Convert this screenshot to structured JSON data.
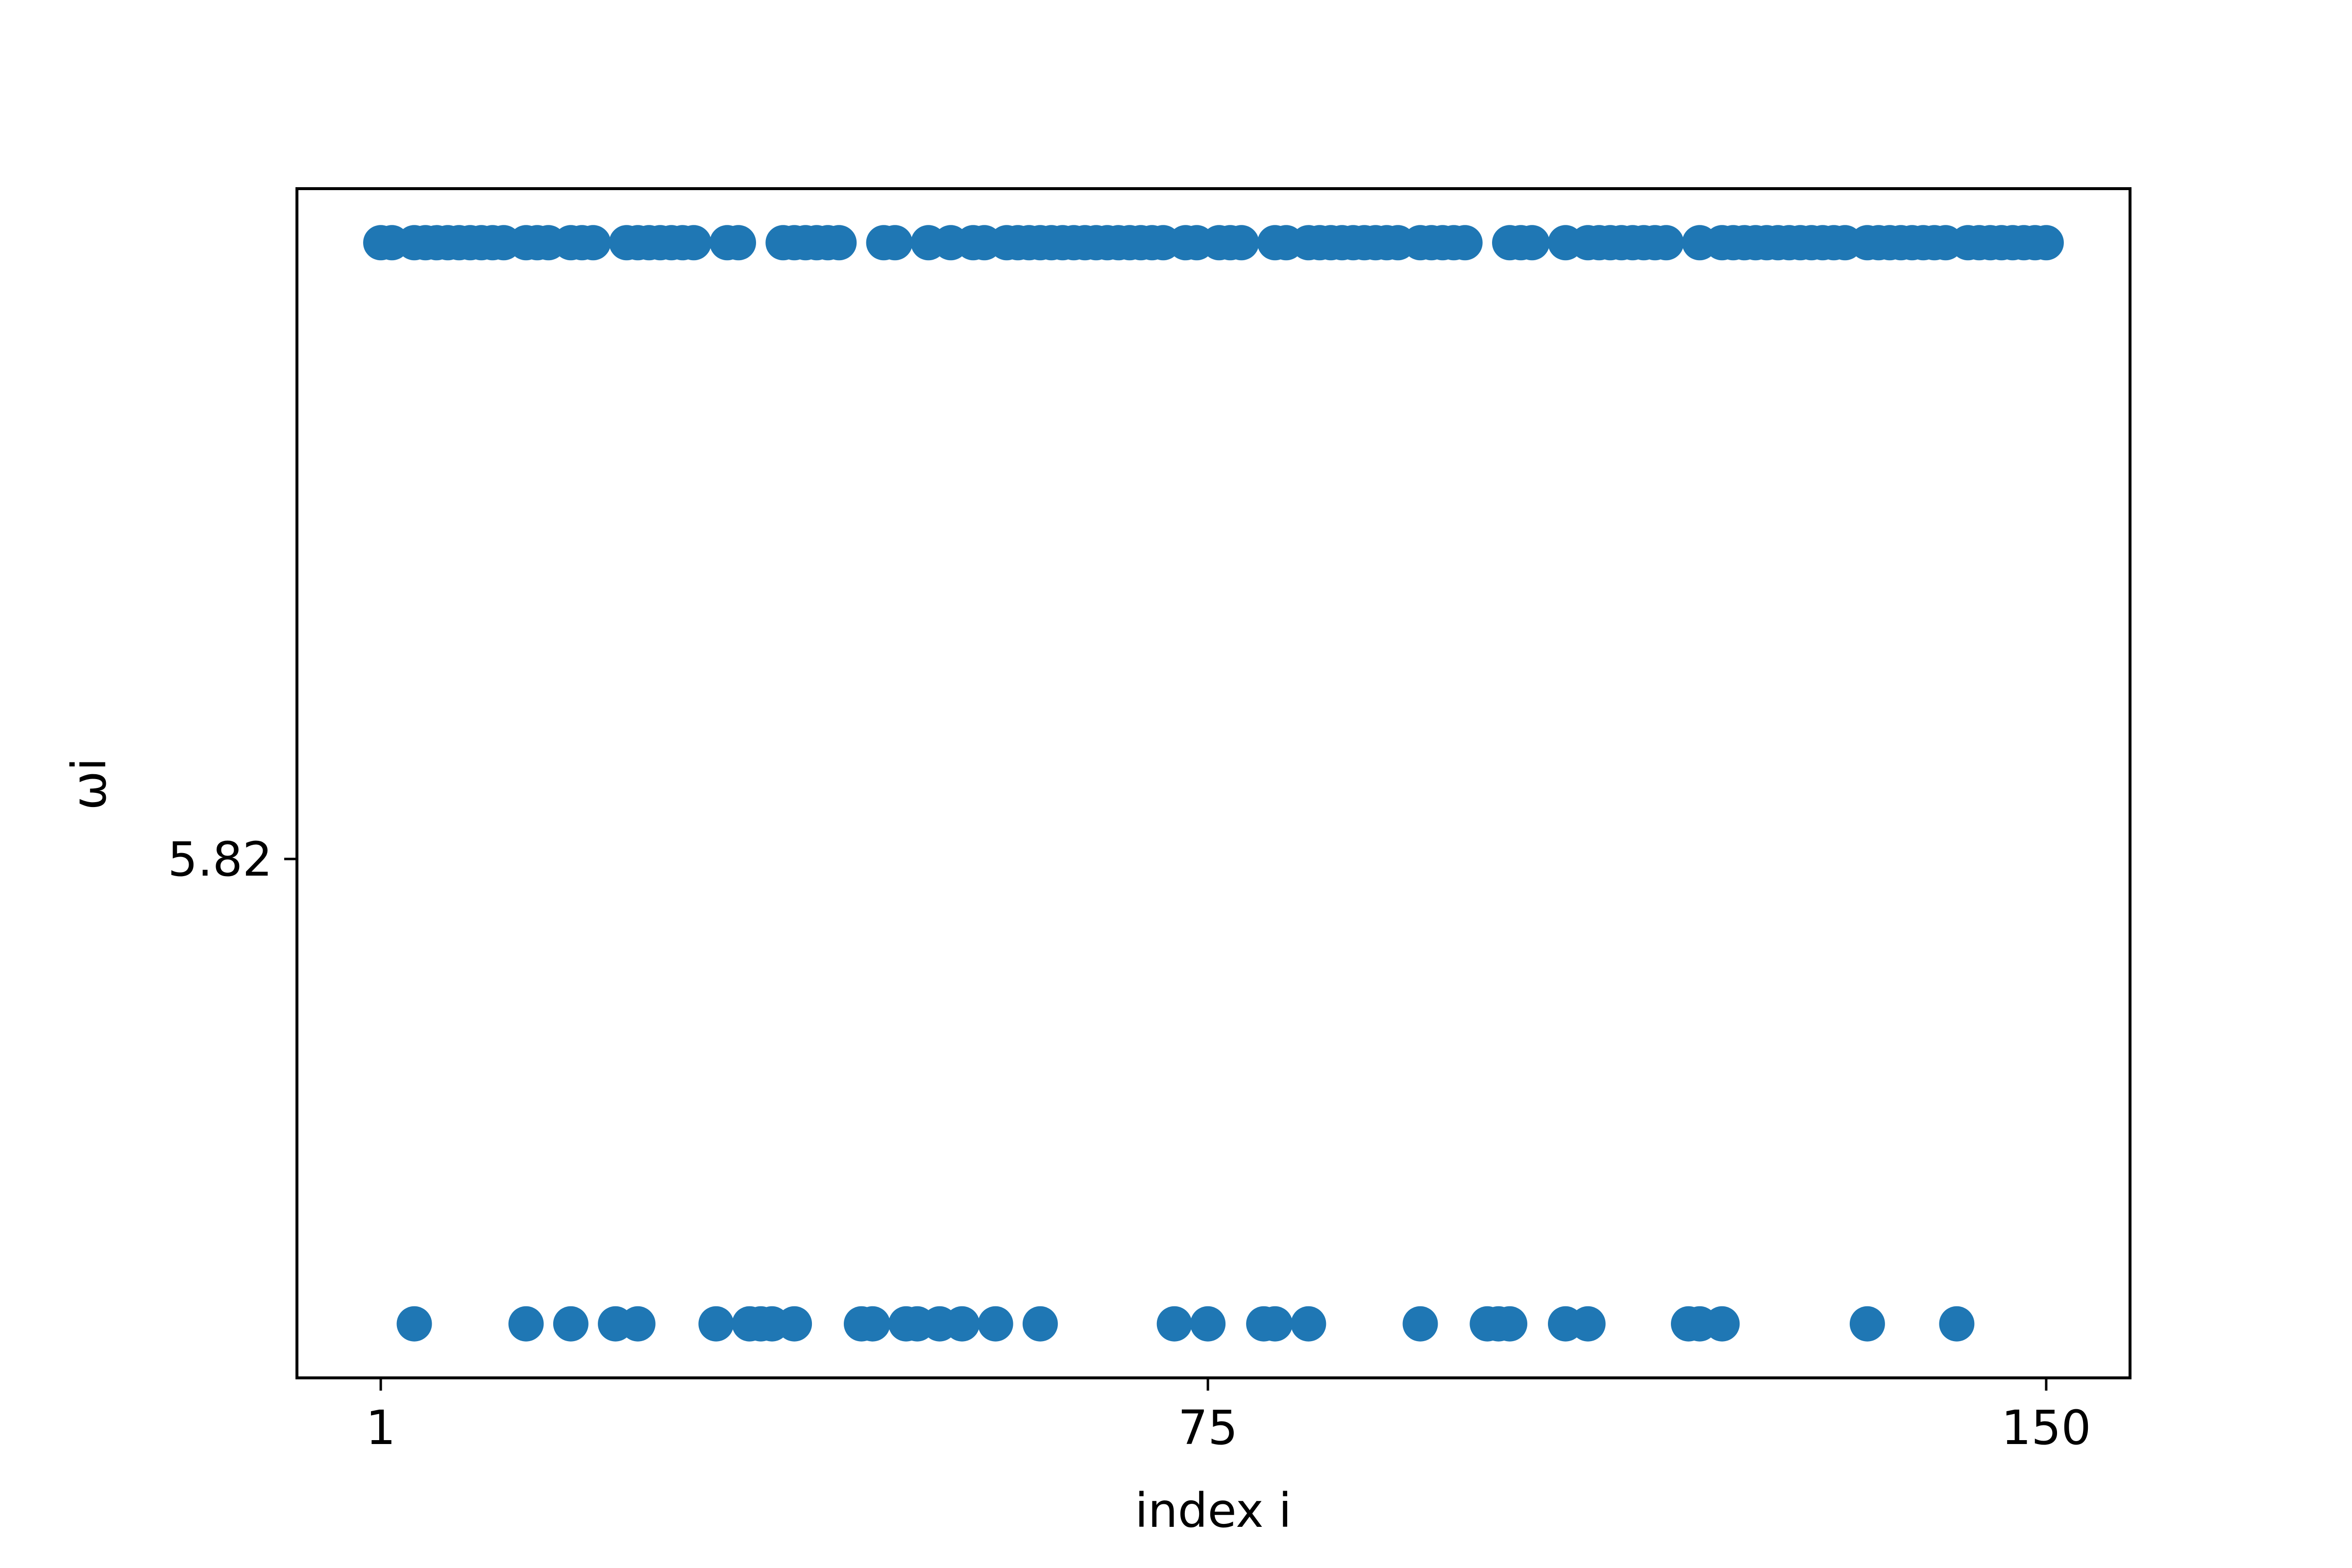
{
  "chart_data": {
    "type": "scatter",
    "xlabel": "index i",
    "ylabel": "ωi",
    "xticks": [
      1,
      75,
      150
    ],
    "yticks": [
      "5.82"
    ],
    "xlim": [
      -6.5,
      157.5
    ],
    "ylim": [
      5.8152,
      5.8262
    ],
    "grid": false,
    "marker_color": "#1f77b4",
    "series": [
      {
        "x": [
          1,
          2,
          4,
          5,
          6,
          7,
          8,
          9,
          10,
          11,
          12,
          14,
          15,
          16,
          18,
          19,
          20,
          23,
          24,
          25,
          26,
          27,
          28,
          29,
          32,
          33,
          37,
          38,
          39,
          40,
          41,
          42,
          46,
          47,
          50,
          52,
          54,
          55,
          57,
          58,
          59,
          60,
          61,
          62,
          63,
          64,
          65,
          66,
          67,
          68,
          69,
          70,
          71,
          73,
          74,
          76,
          77,
          78,
          81,
          82,
          84,
          85,
          86,
          87,
          88,
          89,
          90,
          91,
          92,
          94,
          95,
          96,
          97,
          98,
          102,
          103,
          104,
          107,
          109,
          110,
          111,
          112,
          113,
          114,
          115,
          116,
          119,
          121,
          122,
          123,
          124,
          125,
          126,
          127,
          128,
          129,
          130,
          131,
          132,
          134,
          135,
          136,
          137,
          138,
          139,
          140,
          141,
          143,
          144,
          145,
          146,
          147,
          148,
          149,
          150
        ],
        "y": [
          5.8257,
          5.8257,
          5.8257,
          5.8257,
          5.8257,
          5.8257,
          5.8257,
          5.8257,
          5.8257,
          5.8257,
          5.8257,
          5.8257,
          5.8257,
          5.8257,
          5.8257,
          5.8257,
          5.8257,
          5.8257,
          5.8257,
          5.8257,
          5.8257,
          5.8257,
          5.8257,
          5.8257,
          5.8257,
          5.8257,
          5.8257,
          5.8257,
          5.8257,
          5.8257,
          5.8257,
          5.8257,
          5.8257,
          5.8257,
          5.8257,
          5.8257,
          5.8257,
          5.8257,
          5.8257,
          5.8257,
          5.8257,
          5.8257,
          5.8257,
          5.8257,
          5.8257,
          5.8257,
          5.8257,
          5.8257,
          5.8257,
          5.8257,
          5.8257,
          5.8257,
          5.8257,
          5.8257,
          5.8257,
          5.8257,
          5.8257,
          5.8257,
          5.8257,
          5.8257,
          5.8257,
          5.8257,
          5.8257,
          5.8257,
          5.8257,
          5.8257,
          5.8257,
          5.8257,
          5.8257,
          5.8257,
          5.8257,
          5.8257,
          5.8257,
          5.8257,
          5.8257,
          5.8257,
          5.8257,
          5.8257,
          5.8257,
          5.8257,
          5.8257,
          5.8257,
          5.8257,
          5.8257,
          5.8257,
          5.8257,
          5.8257,
          5.8257,
          5.8257,
          5.8257,
          5.8257,
          5.8257,
          5.8257,
          5.8257,
          5.8257,
          5.8257,
          5.8257,
          5.8257,
          5.8257,
          5.8257,
          5.8257,
          5.8257,
          5.8257,
          5.8257,
          5.8257,
          5.8257,
          5.8257,
          5.8257,
          5.8257,
          5.8257,
          5.8257,
          5.8257,
          5.8257,
          5.8257,
          5.8257
        ]
      },
      {
        "x": [
          4,
          14,
          18,
          22,
          24,
          31,
          34,
          35,
          36,
          38,
          44,
          45,
          48,
          49,
          51,
          53,
          56,
          60,
          72,
          75,
          80,
          81,
          84,
          94,
          100,
          101,
          102,
          107,
          109,
          118,
          119,
          121,
          134,
          142
        ],
        "y": [
          5.8157,
          5.8157,
          5.8157,
          5.8157,
          5.8157,
          5.8157,
          5.8157,
          5.8157,
          5.8157,
          5.8157,
          5.8157,
          5.8157,
          5.8157,
          5.8157,
          5.8157,
          5.8157,
          5.8157,
          5.8157,
          5.8157,
          5.8157,
          5.8157,
          5.8157,
          5.8157,
          5.8157,
          5.8157,
          5.8157,
          5.8157,
          5.8157,
          5.8157,
          5.8157,
          5.8157,
          5.8157,
          5.8157,
          5.8157
        ]
      }
    ]
  }
}
